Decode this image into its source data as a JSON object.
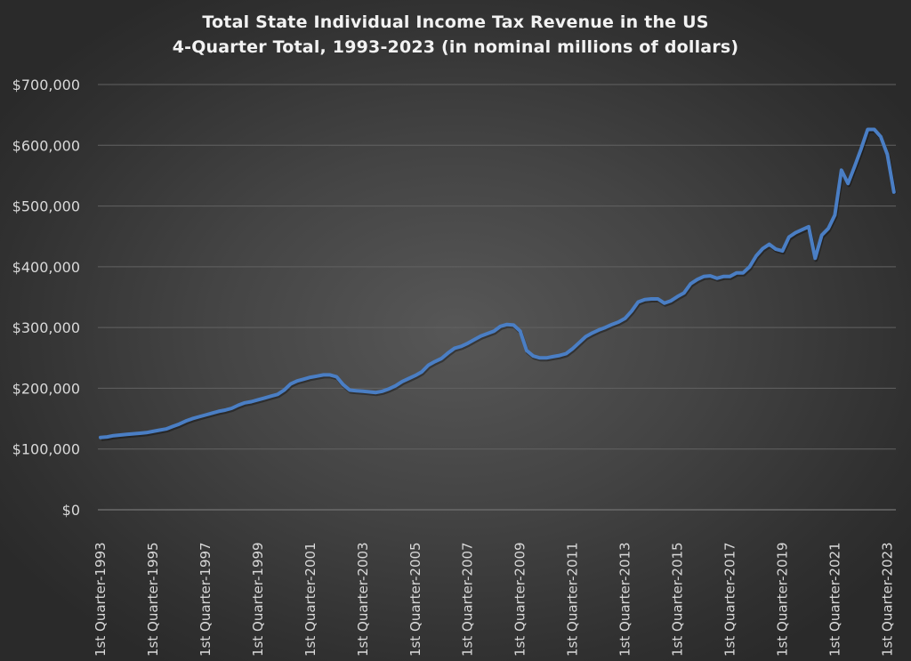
{
  "chart_data": {
    "type": "line",
    "title": "Total State Individual Income Tax Revenue in the US",
    "subtitle": "4-Quarter Total, 1993-2023 (in nominal millions of dollars)",
    "xlabel": "",
    "ylabel": "",
    "ylim": [
      0,
      700000
    ],
    "y_ticks": [
      0,
      100000,
      200000,
      300000,
      400000,
      500000,
      600000,
      700000
    ],
    "y_tick_labels": [
      "$0",
      "$100,000",
      "$200,000",
      "$300,000",
      "$400,000",
      "$500,000",
      "$600,000",
      "$700,000"
    ],
    "grid": true,
    "legend": "none",
    "line_color": "#4a7ec4",
    "x_start": "1st Quarter-1993",
    "x_end": "2nd Quarter-2023",
    "x_tick_every_quarters": 8,
    "x_tick_labels": [
      "1st Quarter-1993",
      "1st Quarter-1995",
      "1st Quarter-1997",
      "1st Quarter-1999",
      "1st Quarter-2001",
      "1st Quarter-2003",
      "1st Quarter-2005",
      "1st Quarter-2007",
      "1st Quarter-2009",
      "1st Quarter-2011",
      "1st Quarter-2013",
      "1st Quarter-2015",
      "1st Quarter-2017",
      "1st Quarter-2019",
      "1st Quarter-2021",
      "1st Quarter-2023"
    ],
    "series": [
      {
        "name": "Total State Individual Income Tax Revenue",
        "values": [
          119000,
          120000,
          122000,
          123000,
          124000,
          125000,
          126000,
          127000,
          129000,
          131000,
          133000,
          137000,
          141000,
          146000,
          150000,
          153000,
          156000,
          159000,
          162000,
          164000,
          167000,
          172000,
          176000,
          178000,
          181000,
          184000,
          187000,
          190000,
          197000,
          207000,
          212000,
          215000,
          218000,
          220000,
          222000,
          222000,
          219000,
          206000,
          197000,
          196000,
          195000,
          194000,
          193000,
          195000,
          199000,
          204000,
          211000,
          216000,
          221000,
          227000,
          238000,
          244000,
          249000,
          258000,
          266000,
          269000,
          274000,
          280000,
          286000,
          290000,
          294000,
          302000,
          305000,
          304000,
          294000,
          262000,
          253000,
          250000,
          250000,
          252000,
          254000,
          257000,
          265000,
          275000,
          285000,
          291000,
          296000,
          300000,
          305000,
          309000,
          315000,
          327000,
          342000,
          346000,
          347000,
          347000,
          340000,
          344000,
          351000,
          357000,
          372000,
          379000,
          384000,
          385000,
          381000,
          384000,
          384000,
          390000,
          390000,
          400000,
          418000,
          430000,
          437000,
          429000,
          426000,
          449000,
          456000,
          461000,
          466000,
          414000,
          452000,
          463000,
          485000,
          559000,
          537000,
          565000,
          594000,
          626000,
          626000,
          614000,
          585000,
          523000
        ]
      }
    ]
  }
}
